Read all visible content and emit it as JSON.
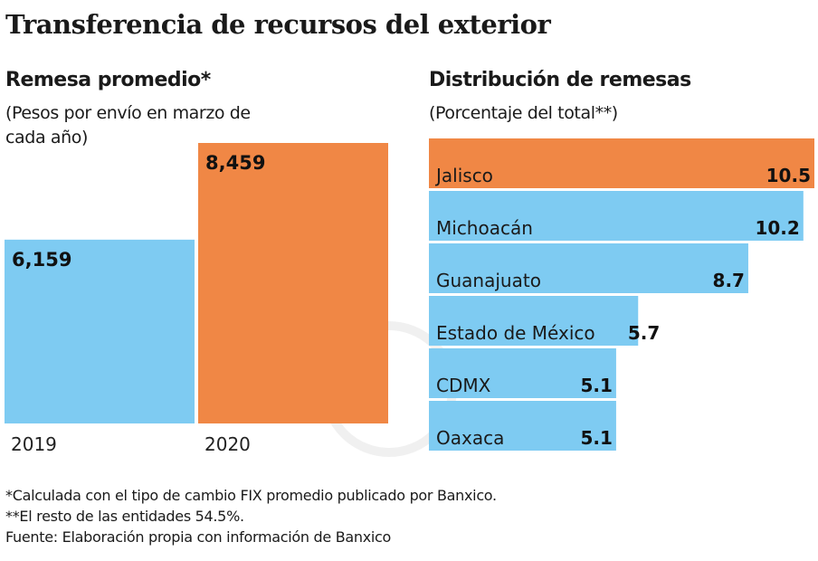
{
  "title": "Transferencia de recursos del exterior",
  "chart_data": [
    {
      "type": "bar",
      "title": "Remesa promedio*",
      "subtitle": "(Pesos por envío en marzo de cada año)",
      "categories": [
        "2019",
        "2020"
      ],
      "values": [
        6159,
        8459
      ],
      "labels": [
        "6,159",
        "8,459"
      ],
      "colors": [
        "#7ecbf2",
        "#f08745"
      ]
    },
    {
      "type": "bar",
      "orientation": "horizontal",
      "title": "Distribución de remesas",
      "subtitle": "(Porcentaje del total**)",
      "categories": [
        "Jalisco",
        "Michoacán",
        "Guanajuato",
        "Estado de México",
        "CDMX",
        "Oaxaca"
      ],
      "values": [
        10.5,
        10.2,
        8.7,
        5.7,
        5.1,
        5.1
      ],
      "labels": [
        "10.5",
        "10.2",
        "8.7",
        "5.7",
        "5.1",
        "5.1"
      ],
      "colors": [
        "#f08745",
        "#7ecbf2",
        "#7ecbf2",
        "#7ecbf2",
        "#7ecbf2",
        "#7ecbf2"
      ]
    }
  ],
  "footnotes": [
    "*Calculada con el tipo de cambio FIX promedio publicado por Banxico.",
    "**El resto de las entidades 54.5%.",
    "Fuente: Elaboración propia con información de Banxico"
  ]
}
